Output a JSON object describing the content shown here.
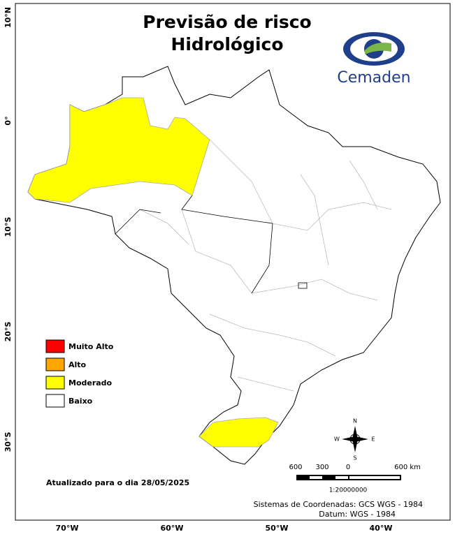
{
  "title_lines": [
    "Previsão de risco",
    "Hidrológico"
  ],
  "logo": "Cemaden",
  "legend": [
    {
      "label": "Muito Alto",
      "color": "#ff0000"
    },
    {
      "label": "Alto",
      "color": "#ffa500"
    },
    {
      "label": "Moderado",
      "color": "#ffff00"
    },
    {
      "label": "Baixo",
      "color": "#ffffff"
    }
  ],
  "lat_labels": [
    "10°N",
    "0°",
    "10°S",
    "20°S",
    "30°S"
  ],
  "lon_labels": [
    "70°W",
    "60°W",
    "50°W",
    "40°W"
  ],
  "compass": {
    "n": "N",
    "s": "S",
    "e": "E",
    "w": "W"
  },
  "scale_bar": {
    "labels": [
      "600",
      "300",
      "0",
      "600 km"
    ],
    "ratio": "1:20000000"
  },
  "updated": "Atualizado para o dia 28/05/2025",
  "credits": [
    "Sistemas de Coordenadas: GCS WGS - 1984",
    "Datum: WGS - 1984"
  ]
}
